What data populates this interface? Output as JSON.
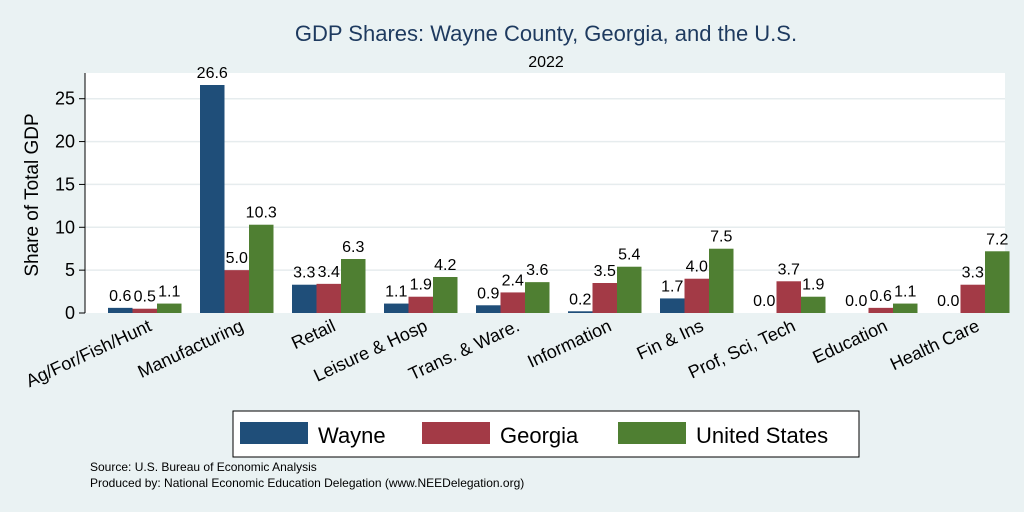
{
  "chart_data": {
    "type": "bar",
    "title": "GDP Shares: Wayne County, Georgia, and the U.S.",
    "subtitle": "2022",
    "ylabel": "Share of Total GDP",
    "xlabel": "",
    "ylim": [
      0,
      28
    ],
    "yticks": [
      0,
      5,
      10,
      15,
      20,
      25
    ],
    "grid": true,
    "legend_position": "bottom",
    "categories": [
      "Ag/For/Fish/Hunt",
      "Manufacturing",
      "Retail",
      "Leisure & Hosp",
      "Trans. & Ware.",
      "Information",
      "Fin & Ins",
      "Prof, Sci, Tech",
      "Education",
      "Health Care"
    ],
    "series": [
      {
        "name": "Wayne",
        "color": "#1f4e79",
        "values": [
          0.6,
          26.6,
          3.3,
          1.1,
          0.9,
          0.2,
          1.7,
          0.0,
          0.0,
          0.0
        ],
        "labels": [
          "0.6",
          "26.6",
          "3.3",
          "1.1",
          "0.9",
          "0.2",
          "1.7",
          "0.0",
          "0.0",
          "0.0"
        ]
      },
      {
        "name": "Georgia",
        "color": "#a33a46",
        "values": [
          0.5,
          5.0,
          3.4,
          1.9,
          2.4,
          3.5,
          4.0,
          3.7,
          0.6,
          3.3
        ],
        "labels": [
          "0.5",
          "5.0",
          "3.4",
          "1.9",
          "2.4",
          "3.5",
          "4.0",
          "3.7",
          "0.6",
          "3.3"
        ]
      },
      {
        "name": "United States",
        "color": "#4f7f32",
        "values": [
          1.1,
          10.3,
          6.3,
          4.2,
          3.6,
          5.4,
          7.5,
          1.9,
          1.1,
          7.2
        ],
        "labels": [
          "1.1",
          "10.3",
          "6.3",
          "4.2",
          "3.6",
          "5.4",
          "7.5",
          "1.9",
          "1.1",
          "7.2"
        ]
      }
    ]
  },
  "source": {
    "line1": "Source: U.S. Bureau of Economic Analysis",
    "line2": "Produced by: National Economic Education Delegation (www.NEEDelegation.org)"
  }
}
